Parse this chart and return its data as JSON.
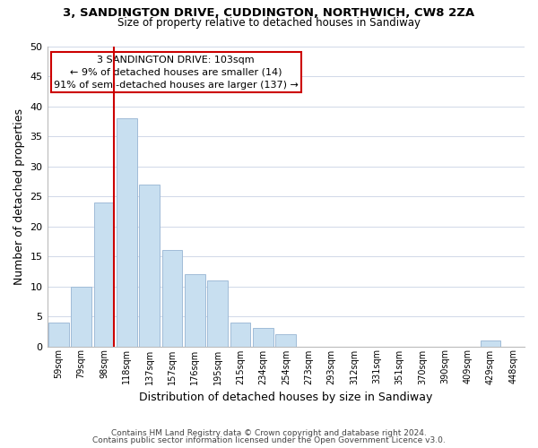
{
  "title": "3, SANDINGTON DRIVE, CUDDINGTON, NORTHWICH, CW8 2ZA",
  "subtitle": "Size of property relative to detached houses in Sandiway",
  "bar_labels": [
    "59sqm",
    "79sqm",
    "98sqm",
    "118sqm",
    "137sqm",
    "157sqm",
    "176sqm",
    "195sqm",
    "215sqm",
    "234sqm",
    "254sqm",
    "273sqm",
    "293sqm",
    "312sqm",
    "331sqm",
    "351sqm",
    "370sqm",
    "390sqm",
    "409sqm",
    "429sqm",
    "448sqm"
  ],
  "bar_heights": [
    4,
    10,
    24,
    38,
    27,
    16,
    12,
    11,
    4,
    3,
    2,
    0,
    0,
    0,
    0,
    0,
    0,
    0,
    0,
    1,
    0
  ],
  "bar_color": "#c8dff0",
  "bar_edge_color": "#a0bcd8",
  "vline_color": "#cc0000",
  "annotation_title": "3 SANDINGTON DRIVE: 103sqm",
  "annotation_line1": "← 9% of detached houses are smaller (14)",
  "annotation_line2": "91% of semi-detached houses are larger (137) →",
  "annotation_box_edge": "#cc0000",
  "annotation_box_fill": "#ffffff",
  "xlabel": "Distribution of detached houses by size in Sandiway",
  "ylabel": "Number of detached properties",
  "ylim": [
    0,
    50
  ],
  "yticks": [
    0,
    5,
    10,
    15,
    20,
    25,
    30,
    35,
    40,
    45,
    50
  ],
  "footnote1": "Contains HM Land Registry data © Crown copyright and database right 2024.",
  "footnote2": "Contains public sector information licensed under the Open Government Licence v3.0.",
  "background_color": "#ffffff",
  "grid_color": "#d0d8e8"
}
